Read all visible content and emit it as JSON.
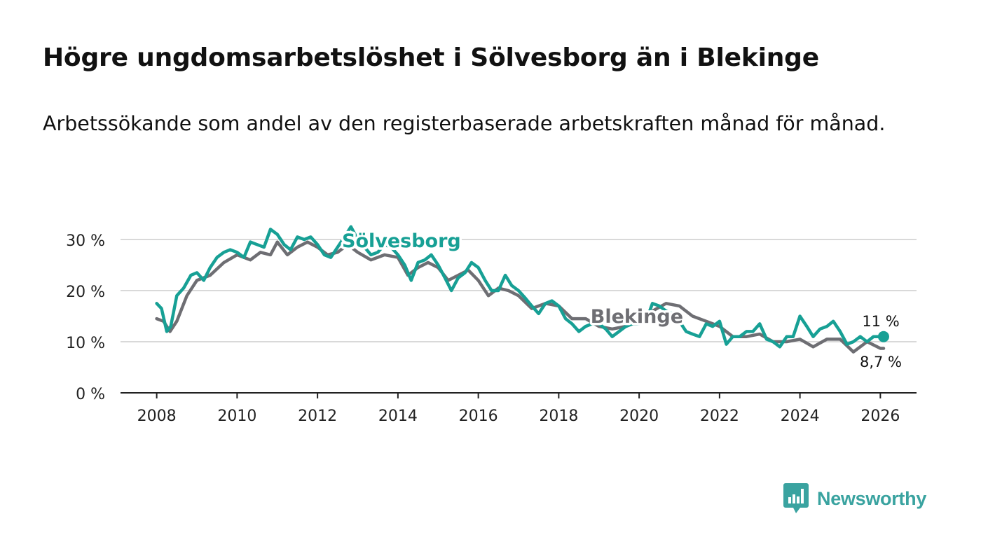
{
  "header": {
    "title": "Högre ungdomsarbetslöshet i Sölvesborg än i Blekinge",
    "subtitle": "Arbetssökande som andel av den registerbaserade arbetskraften månad för månad."
  },
  "chart_data": {
    "type": "line",
    "title": "Högre ungdomsarbetslöshet i Sölvesborg än i Blekinge",
    "subtitle": "Arbetssökande som andel av den registerbaserade arbetskraften månad för månad.",
    "xlabel": "",
    "ylabel": "",
    "xlim": [
      2007.1,
      2026.9
    ],
    "ylim": [
      0,
      30
    ],
    "x_ticks": [
      2008,
      2010,
      2012,
      2014,
      2016,
      2018,
      2020,
      2022,
      2024,
      2026
    ],
    "x_tick_labels": [
      "2008",
      "2010",
      "2012",
      "2014",
      "2016",
      "2018",
      "2020",
      "2022",
      "2024",
      "2026"
    ],
    "y_ticks": [
      0,
      10,
      20,
      30
    ],
    "y_tick_labels": [
      "0 %",
      "10 %",
      "20 %",
      "30 %"
    ],
    "grid": true,
    "series": [
      {
        "name": "Blekinge",
        "label": "Blekinge",
        "color": "#6e6e73",
        "x": [
          2008.0,
          2008.17,
          2008.33,
          2008.5,
          2008.75,
          2009.0,
          2009.33,
          2009.67,
          2010.0,
          2010.33,
          2010.58,
          2010.83,
          2011.0,
          2011.25,
          2011.5,
          2011.75,
          2012.0,
          2012.25,
          2012.5,
          2012.75,
          2013.0,
          2013.33,
          2013.67,
          2014.0,
          2014.25,
          2014.5,
          2014.75,
          2015.0,
          2015.25,
          2015.5,
          2015.75,
          2016.0,
          2016.25,
          2016.5,
          2016.75,
          2017.0,
          2017.33,
          2017.67,
          2018.0,
          2018.33,
          2018.67,
          2019.0,
          2019.33,
          2019.67,
          2020.0,
          2020.33,
          2020.67,
          2021.0,
          2021.33,
          2021.67,
          2022.0,
          2022.33,
          2022.67,
          2023.0,
          2023.33,
          2023.67,
          2024.0,
          2024.33,
          2024.67,
          2025.0,
          2025.33,
          2025.67,
          2026.0,
          2026.08
        ],
        "values": [
          14.5,
          14.0,
          12.0,
          14.0,
          19.0,
          22.0,
          23.0,
          25.5,
          27.0,
          26.0,
          27.5,
          27.0,
          29.5,
          27.0,
          28.5,
          29.5,
          28.5,
          27.0,
          27.5,
          29.0,
          27.5,
          26.0,
          27.0,
          26.5,
          23.0,
          24.5,
          25.5,
          24.5,
          22.0,
          23.0,
          24.0,
          22.0,
          19.0,
          20.5,
          20.0,
          19.0,
          16.5,
          17.5,
          17.0,
          14.5,
          14.5,
          13.0,
          12.5,
          13.0,
          14.0,
          16.0,
          17.5,
          17.0,
          15.0,
          14.0,
          13.0,
          11.0,
          11.0,
          11.5,
          10.0,
          10.0,
          10.5,
          9.0,
          10.5,
          10.5,
          8.0,
          10.0,
          8.7,
          8.7
        ],
        "last_value_label": "8,7 %"
      },
      {
        "name": "Sölvesborg",
        "label": "Sölvesborg",
        "color": "#17a095",
        "x": [
          2008.0,
          2008.12,
          2008.25,
          2008.35,
          2008.5,
          2008.67,
          2008.85,
          2009.0,
          2009.17,
          2009.33,
          2009.5,
          2009.67,
          2009.83,
          2010.0,
          2010.17,
          2010.33,
          2010.5,
          2010.67,
          2010.83,
          2011.0,
          2011.17,
          2011.33,
          2011.5,
          2011.67,
          2011.83,
          2012.0,
          2012.17,
          2012.33,
          2012.5,
          2012.67,
          2012.83,
          2013.0,
          2013.17,
          2013.33,
          2013.5,
          2013.67,
          2013.83,
          2014.0,
          2014.17,
          2014.33,
          2014.5,
          2014.67,
          2014.83,
          2015.0,
          2015.17,
          2015.33,
          2015.5,
          2015.67,
          2015.83,
          2016.0,
          2016.17,
          2016.33,
          2016.5,
          2016.67,
          2016.83,
          2017.0,
          2017.17,
          2017.33,
          2017.5,
          2017.67,
          2017.83,
          2018.0,
          2018.17,
          2018.33,
          2018.5,
          2018.67,
          2018.83,
          2019.0,
          2019.17,
          2019.33,
          2019.5,
          2019.67,
          2019.83,
          2020.0,
          2020.17,
          2020.33,
          2020.5,
          2020.67,
          2020.83,
          2021.0,
          2021.17,
          2021.33,
          2021.5,
          2021.67,
          2021.83,
          2022.0,
          2022.17,
          2022.33,
          2022.5,
          2022.67,
          2022.83,
          2023.0,
          2023.17,
          2023.33,
          2023.5,
          2023.67,
          2023.83,
          2024.0,
          2024.17,
          2024.33,
          2024.5,
          2024.67,
          2024.83,
          2025.0,
          2025.17,
          2025.33,
          2025.5,
          2025.67,
          2025.83,
          2026.0,
          2026.08
        ],
        "values": [
          17.5,
          16.5,
          12.0,
          13.0,
          19.0,
          20.5,
          23.0,
          23.5,
          22.0,
          24.5,
          26.5,
          27.5,
          28.0,
          27.5,
          26.5,
          29.5,
          29.0,
          28.5,
          32.0,
          31.0,
          29.0,
          28.0,
          30.5,
          30.0,
          30.5,
          29.0,
          27.0,
          26.5,
          28.5,
          30.5,
          32.5,
          30.0,
          28.5,
          27.0,
          27.5,
          29.0,
          28.5,
          27.0,
          25.0,
          22.0,
          25.5,
          26.0,
          27.0,
          25.0,
          22.5,
          20.0,
          22.5,
          23.5,
          25.5,
          24.5,
          22.0,
          20.0,
          20.0,
          23.0,
          21.0,
          20.0,
          18.5,
          17.0,
          15.5,
          17.5,
          18.0,
          17.0,
          14.5,
          13.5,
          12.0,
          13.0,
          13.5,
          13.5,
          12.5,
          11.0,
          12.0,
          13.0,
          13.5,
          13.5,
          14.0,
          17.5,
          17.0,
          16.0,
          15.5,
          14.0,
          12.0,
          11.5,
          11.0,
          13.5,
          13.0,
          14.0,
          9.5,
          11.0,
          11.0,
          12.0,
          12.0,
          13.5,
          10.5,
          10.0,
          9.0,
          11.0,
          11.0,
          15.0,
          13.0,
          11.0,
          12.5,
          13.0,
          14.0,
          12.0,
          9.5,
          10.0,
          11.0,
          10.0,
          11.0,
          11.0,
          11.0
        ],
        "last_value_label": "11 %"
      }
    ]
  },
  "branding": {
    "logo_text": "Newsworthy",
    "logo_icon": "bar-chart-icon",
    "logo_color": "#3aa3a0"
  }
}
